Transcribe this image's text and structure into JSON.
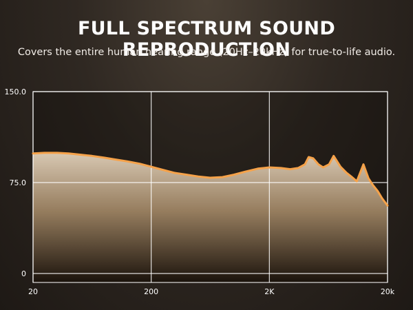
{
  "header": {
    "title": "FULL SPECTRUM SOUND REPRODUCTION",
    "subtitle": "Covers the entire human hearing range (20Hz–20kHz) for true-to-life audio."
  },
  "chart_data": {
    "type": "area",
    "title": "FULL SPECTRUM SOUND REPRODUCTION",
    "subtitle": "Covers the entire human hearing range (20Hz–20kHz) for true-to-life audio.",
    "x_scale": "log",
    "xlim": [
      20,
      20000
    ],
    "ylim": [
      0,
      150
    ],
    "x_ticks": [
      {
        "value": 20,
        "label": "20"
      },
      {
        "value": 200,
        "label": "200"
      },
      {
        "value": 2000,
        "label": "2K"
      },
      {
        "value": 20000,
        "label": "20k"
      }
    ],
    "y_ticks": [
      {
        "value": 0,
        "label": "0"
      },
      {
        "value": 75,
        "label": "75.0"
      },
      {
        "value": 150,
        "label": "150.0"
      }
    ],
    "grid": true,
    "legend": "none",
    "colors": {
      "line": "#f5a24a",
      "fill_top": "#d8c8b2",
      "fill_bottom": "#2a1e12",
      "grid": "#ffffff"
    },
    "series": [
      {
        "x": [
          20,
          25,
          32,
          40,
          50,
          63,
          80,
          100,
          125,
          160,
          200,
          250,
          315,
          400,
          500,
          630,
          800,
          1000,
          1250,
          1600,
          2000,
          2500,
          3000,
          3500,
          4000,
          4300,
          4700,
          5200,
          5700,
          6400,
          7000,
          8000,
          9000,
          10000,
          11000,
          12500,
          13800,
          15000,
          16500,
          18000,
          20000
        ],
        "y": [
          99,
          99.5,
          99.5,
          99,
          98,
          97,
          95.5,
          94,
          92.5,
          90.5,
          88,
          85.5,
          83,
          81.5,
          80,
          79,
          79.5,
          81.5,
          84,
          86.5,
          87.5,
          87,
          86,
          87,
          90,
          96,
          95,
          90,
          87.5,
          90,
          97,
          88,
          83,
          79.5,
          76,
          90,
          78.5,
          73,
          68,
          62,
          56
        ]
      }
    ]
  }
}
